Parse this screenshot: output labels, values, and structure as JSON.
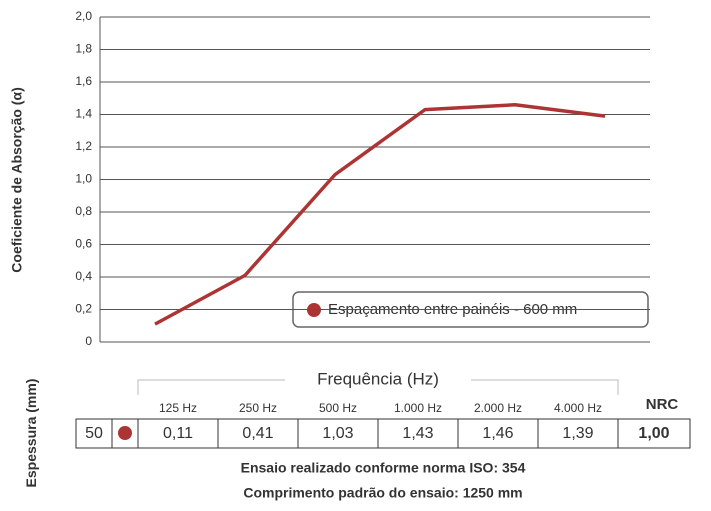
{
  "chart_data": {
    "type": "line",
    "y_label": "Coeficiente de Absorção (α)",
    "categories": [
      "125 Hz",
      "250 Hz",
      "500 Hz",
      "1.000 Hz",
      "2.000 Hz",
      "4.000 Hz"
    ],
    "series": [
      {
        "name": "Espaçamento entre painéis - 600 mm",
        "color": "#ad3434",
        "values": [
          0.11,
          0.41,
          1.03,
          1.43,
          1.46,
          1.39
        ],
        "value_labels": [
          "0,11",
          "0,41",
          "1,03",
          "1,43",
          "1,46",
          "1,39"
        ]
      }
    ],
    "ylim": [
      0,
      2
    ],
    "yticks": [
      0,
      {
        "value": 0.2,
        "label": "0,2"
      },
      {
        "value": 0.4,
        "label": "0,4"
      },
      {
        "value": 0.6,
        "label": "0,6"
      },
      {
        "value": 0.8,
        "label": "0,8"
      },
      {
        "value": 1.0,
        "label": "1,0"
      },
      {
        "value": 1.2,
        "label": "1,2"
      },
      {
        "value": 1.4,
        "label": "1,4"
      },
      {
        "value": 1.6,
        "label": "1,6"
      },
      {
        "value": 1.8,
        "label": "1,8"
      },
      {
        "value": 2.0,
        "label": "2,0"
      }
    ],
    "grid": true,
    "legend": "lower right"
  },
  "table": {
    "header": "Frequência (Hz)",
    "side_label": "Espessura (mm)",
    "thickness": "50",
    "nrc_label": "NRC",
    "nrc": "1,00"
  },
  "notes": [
    "Ensaio realizado conforme norma ISO: 354",
    "Comprimento padrão do ensaio: 1250 mm"
  ]
}
